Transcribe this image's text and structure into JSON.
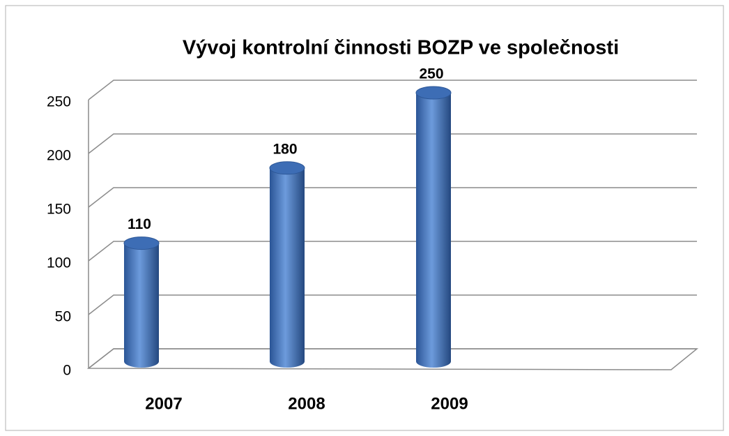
{
  "chart_data": {
    "type": "bar",
    "title": "Vývoj kontrolní činnosti BOZP ve společnosti",
    "categories": [
      "2007",
      "2008",
      "2009"
    ],
    "values": [
      110,
      180,
      250
    ],
    "color": "#4a7cc4",
    "ylim": [
      0,
      250
    ],
    "yticks": [
      0,
      50,
      100,
      150,
      200,
      250
    ],
    "grid": true
  }
}
